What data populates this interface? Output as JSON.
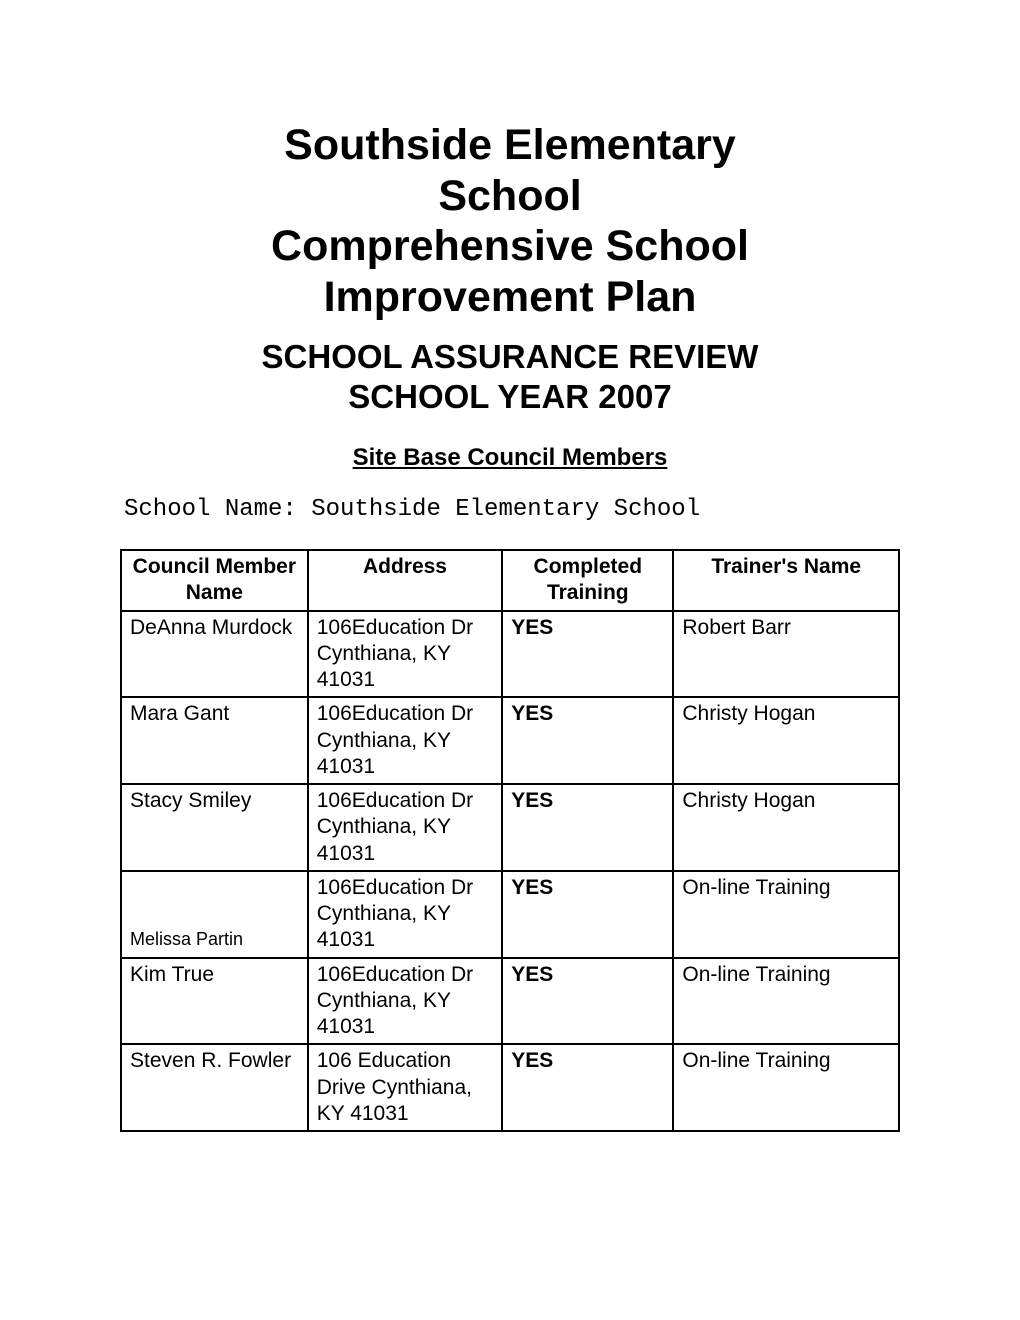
{
  "title": {
    "line1": "Southside Elementary",
    "line2": "School",
    "line3": "Comprehensive School",
    "line4": "Improvement Plan"
  },
  "subtitle": {
    "line1": "SCHOOL ASSURANCE REVIEW",
    "line2": "SCHOOL YEAR 2007"
  },
  "section_heading": "Site Base Council Members",
  "school_name_label": "School Name:  Southside Elementary School",
  "table": {
    "columns": [
      "Council Member Name",
      "Address",
      "Completed Training",
      "Trainer's Name"
    ],
    "rows": [
      {
        "name": "DeAnna Murdock",
        "address": "106Education Dr Cynthiana, KY 41031",
        "training": "YES",
        "trainer": "Robert Barr"
      },
      {
        "name": "Mara Gant",
        "address": "106Education Dr Cynthiana, KY 41031",
        "training": "YES",
        "trainer": "Christy Hogan"
      },
      {
        "name": "Stacy Smiley",
        "address": "106Education Dr Cynthiana, KY 41031",
        "training": "YES",
        "trainer": "Christy Hogan"
      },
      {
        "name": "Melissa Partin",
        "address": "106Education Dr Cynthiana, KY 41031",
        "training": "YES",
        "trainer": "On-line Training"
      },
      {
        "name": "Kim True",
        "address": "106Education Dr Cynthiana, KY 41031",
        "training": "YES",
        "trainer": "On-line Training"
      },
      {
        "name": "Steven R. Fowler",
        "address": "106 Education Drive Cynthiana, KY  41031",
        "training": "YES",
        "trainer": "On-line Training"
      }
    ]
  }
}
